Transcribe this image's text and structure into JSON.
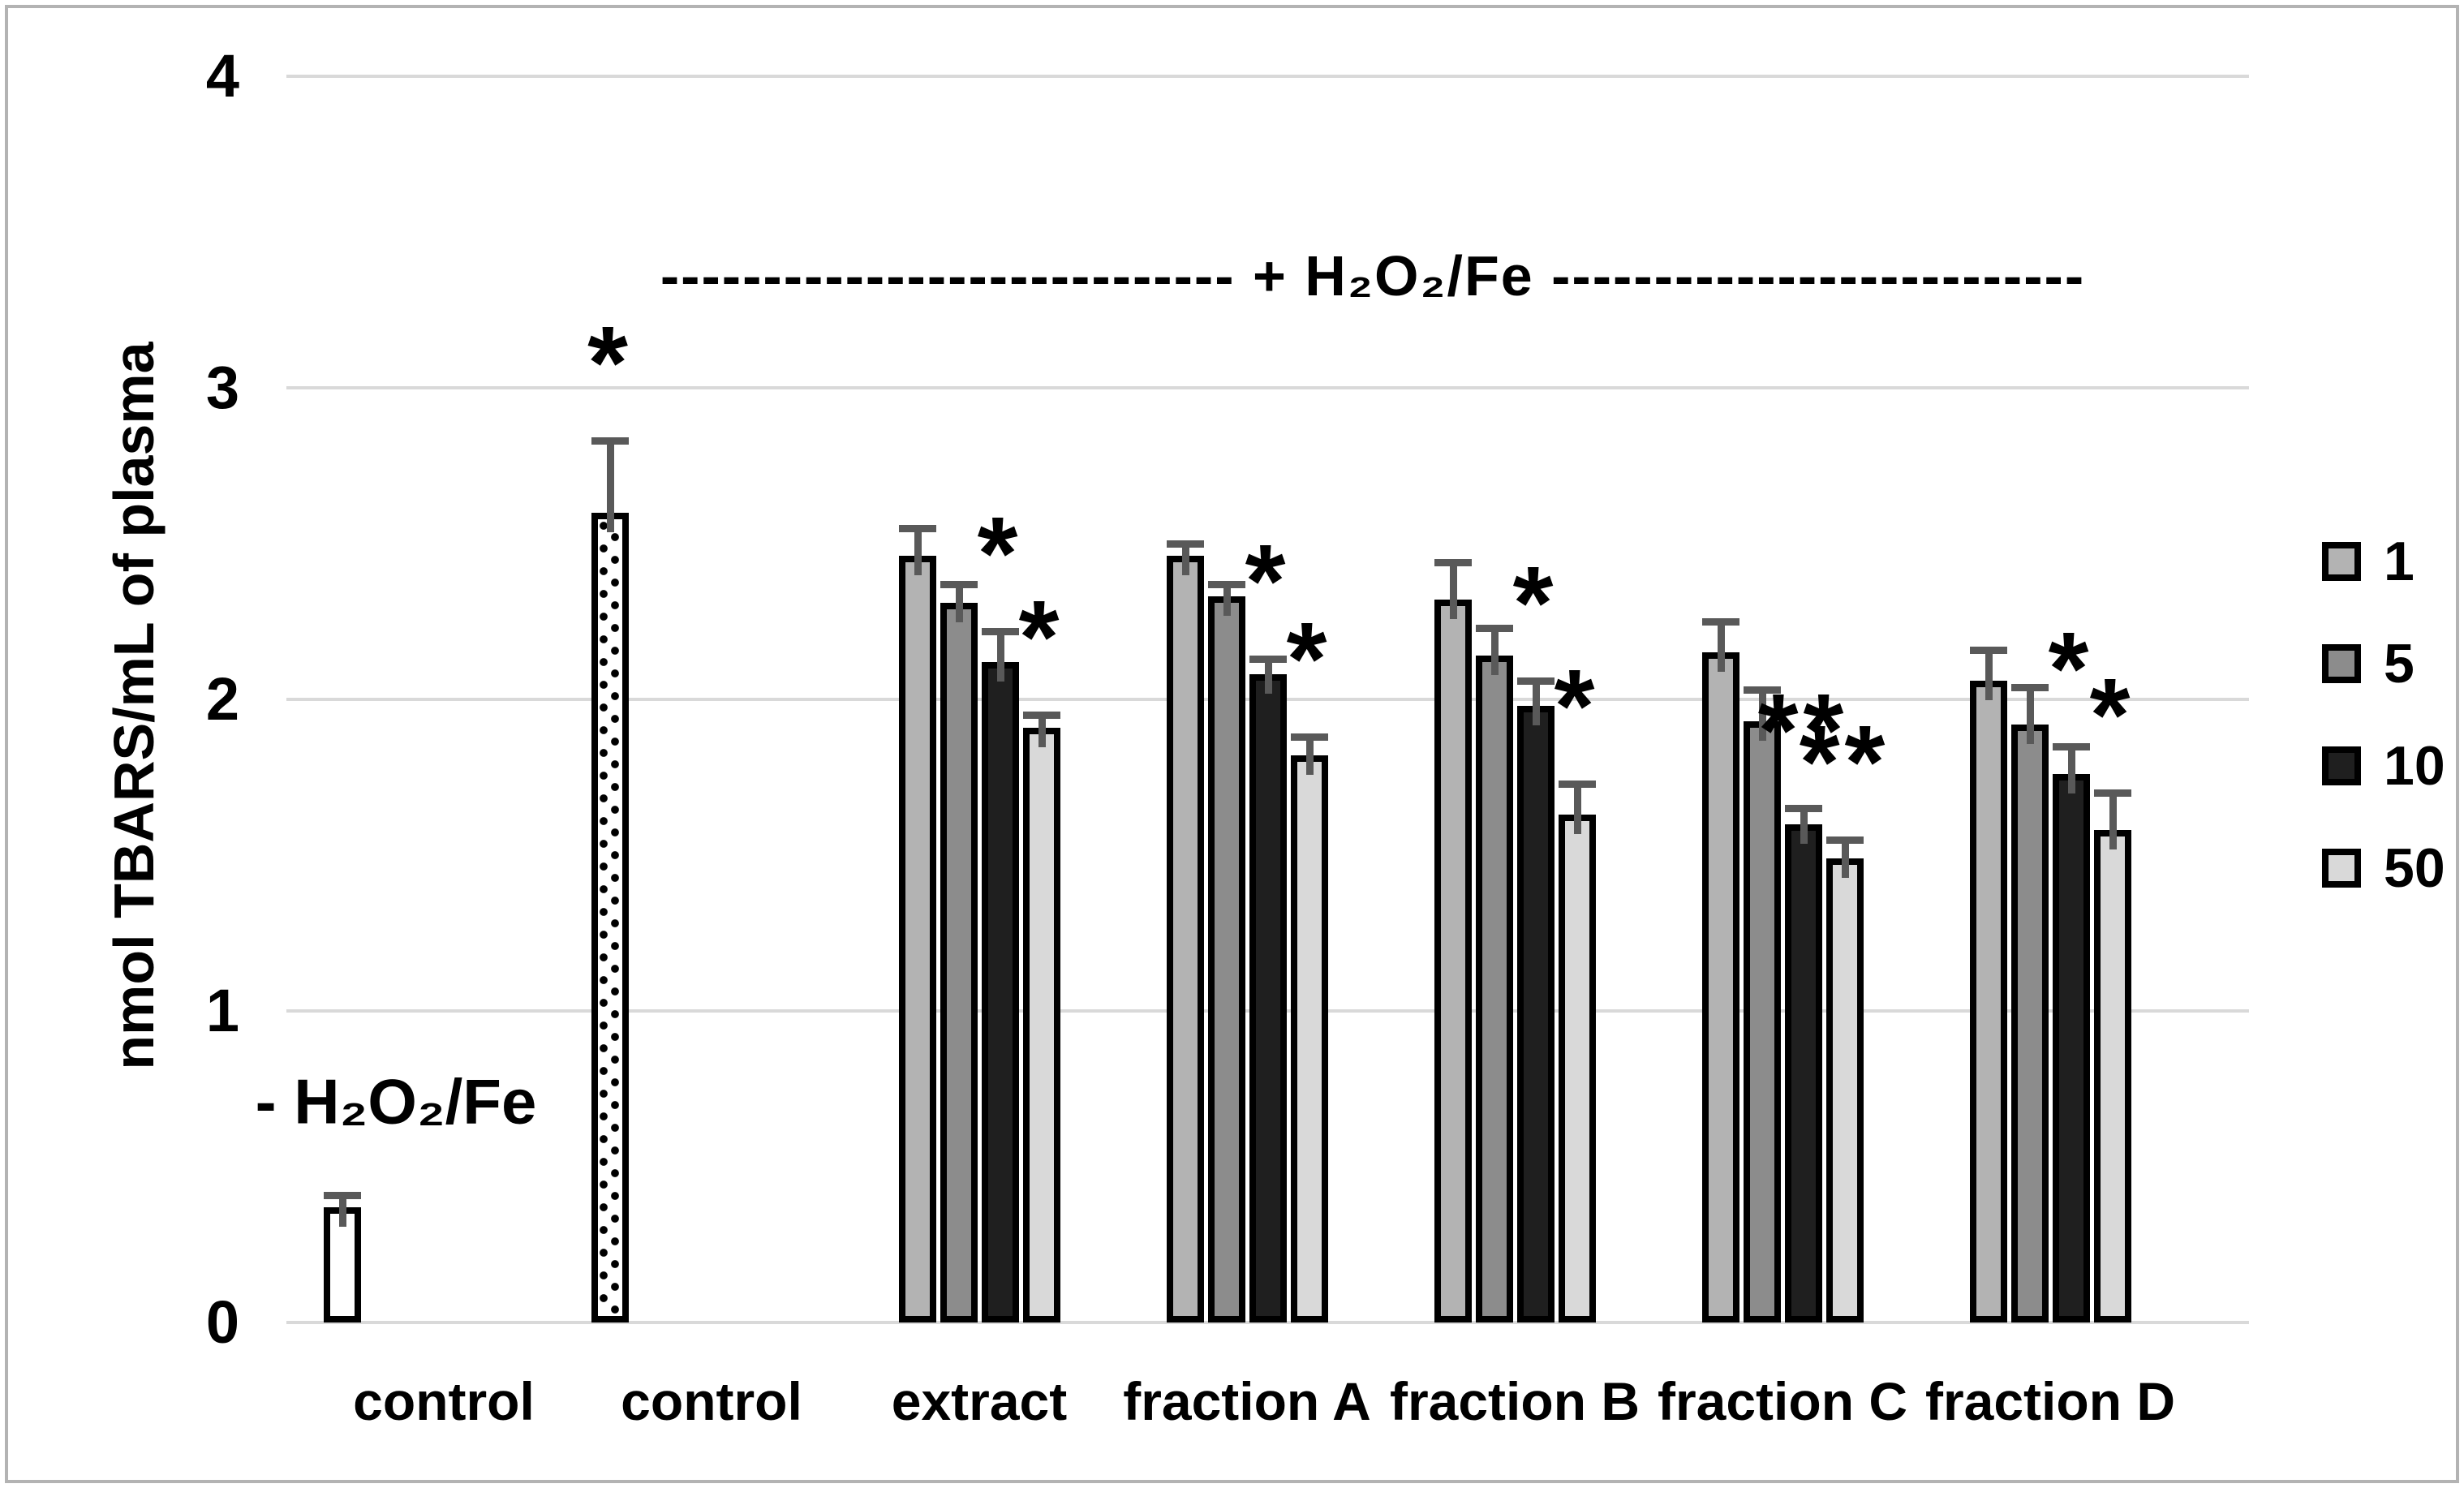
{
  "figure": {
    "background": "#ffffff",
    "frame_color": "#b3b3b3"
  },
  "chart_data": {
    "type": "bar",
    "title": "",
    "xlabel": "",
    "ylabel": "nmol TBARS/mL of plasma",
    "ylim": [
      0,
      4
    ],
    "yticks": [
      0,
      1,
      2,
      3,
      4
    ],
    "grid": "horizontal",
    "grid_color": "#d9d9d9",
    "error_bar_color": "#595959",
    "bar_border_color": "#000000",
    "annotations": {
      "left_condition": "- H₂O₂/Fe",
      "top_condition": "---------------------------- + H₂O₂/Fe --------------------------"
    },
    "legend": {
      "position": "right",
      "entries": [
        {
          "label": "1",
          "color": "#b3b3b3"
        },
        {
          "label": "5",
          "color": "#8c8c8c"
        },
        {
          "label": "10",
          "color": "#1f1f1f"
        },
        {
          "label": "50",
          "color": "#d9d9d9"
        }
      ]
    },
    "categories": [
      "control",
      "control",
      "extract",
      "fraction A",
      "fraction B",
      "fraction C",
      "fraction D"
    ],
    "groups": [
      {
        "category": "control",
        "bars": [
          {
            "series": "control",
            "value": 0.37,
            "error": 0.04,
            "sig": "",
            "fill": "#ffffff"
          }
        ]
      },
      {
        "category": "control",
        "bars": [
          {
            "series": "control",
            "value": 2.6,
            "error": 0.23,
            "sig": "*",
            "fill": "stipple"
          }
        ]
      },
      {
        "category": "extract",
        "bars": [
          {
            "series": "1",
            "value": 2.46,
            "error": 0.09,
            "sig": "",
            "fill": "#b3b3b3"
          },
          {
            "series": "5",
            "value": 2.31,
            "error": 0.06,
            "sig": "",
            "fill": "#8c8c8c"
          },
          {
            "series": "10",
            "value": 2.12,
            "error": 0.1,
            "sig": "*",
            "fill": "#1f1f1f"
          },
          {
            "series": "50",
            "value": 1.91,
            "error": 0.04,
            "sig": "*",
            "fill": "#d9d9d9"
          }
        ]
      },
      {
        "category": "fraction A",
        "bars": [
          {
            "series": "1",
            "value": 2.46,
            "error": 0.04,
            "sig": "",
            "fill": "#b3b3b3"
          },
          {
            "series": "5",
            "value": 2.33,
            "error": 0.04,
            "sig": "",
            "fill": "#8c8c8c"
          },
          {
            "series": "10",
            "value": 2.08,
            "error": 0.05,
            "sig": "*",
            "fill": "#1f1f1f"
          },
          {
            "series": "50",
            "value": 1.82,
            "error": 0.06,
            "sig": "*",
            "fill": "#d9d9d9"
          }
        ]
      },
      {
        "category": "fraction B",
        "bars": [
          {
            "series": "1",
            "value": 2.32,
            "error": 0.12,
            "sig": "",
            "fill": "#b3b3b3"
          },
          {
            "series": "5",
            "value": 2.14,
            "error": 0.09,
            "sig": "",
            "fill": "#8c8c8c"
          },
          {
            "series": "10",
            "value": 1.98,
            "error": 0.08,
            "sig": "*",
            "fill": "#1f1f1f"
          },
          {
            "series": "50",
            "value": 1.63,
            "error": 0.1,
            "sig": "*",
            "fill": "#d9d9d9"
          }
        ]
      },
      {
        "category": "fraction C",
        "bars": [
          {
            "series": "1",
            "value": 2.15,
            "error": 0.1,
            "sig": "",
            "fill": "#b3b3b3"
          },
          {
            "series": "5",
            "value": 1.93,
            "error": 0.1,
            "sig": "",
            "fill": "#8c8c8c"
          },
          {
            "series": "10",
            "value": 1.6,
            "error": 0.05,
            "sig": "**",
            "fill": "#1f1f1f"
          },
          {
            "series": "50",
            "value": 1.49,
            "error": 0.06,
            "sig": "**",
            "fill": "#d9d9d9"
          }
        ]
      },
      {
        "category": "fraction D",
        "bars": [
          {
            "series": "1",
            "value": 2.06,
            "error": 0.1,
            "sig": "",
            "fill": "#b3b3b3"
          },
          {
            "series": "5",
            "value": 1.92,
            "error": 0.12,
            "sig": "",
            "fill": "#8c8c8c"
          },
          {
            "series": "10",
            "value": 1.76,
            "error": 0.09,
            "sig": "*",
            "fill": "#1f1f1f"
          },
          {
            "series": "50",
            "value": 1.58,
            "error": 0.12,
            "sig": "*",
            "fill": "#d9d9d9"
          }
        ]
      }
    ]
  }
}
